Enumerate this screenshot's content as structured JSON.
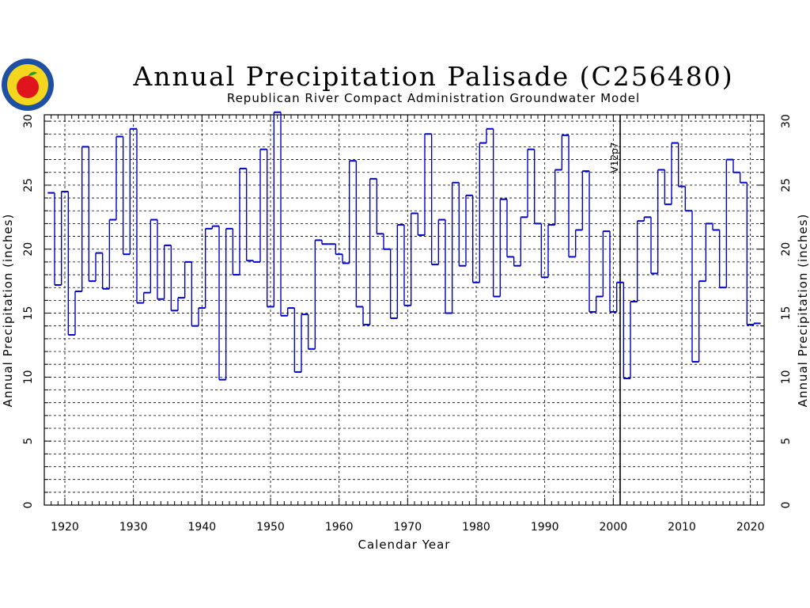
{
  "chart_data": {
    "type": "line",
    "title": "Annual Precipitation Palisade (C256480)",
    "subtitle": "Republican River Compact Administration Groundwater Model",
    "xlabel": "Calendar Year",
    "ylabel": "Annual Precipitation (inches)",
    "xlim": [
      1917,
      2022
    ],
    "ylim": [
      0,
      30.5
    ],
    "x_ticks": [
      1920,
      1930,
      1940,
      1950,
      1960,
      1970,
      1980,
      1990,
      2000,
      2010,
      2020
    ],
    "y_ticks": [
      0,
      5,
      10,
      15,
      20,
      25,
      30
    ],
    "grid": true,
    "marker": {
      "year": 2001,
      "label": "V12p7"
    },
    "line_color": "#0000cc",
    "x": [
      1918,
      1919,
      1920,
      1921,
      1922,
      1923,
      1924,
      1925,
      1926,
      1927,
      1928,
      1929,
      1930,
      1931,
      1932,
      1933,
      1934,
      1935,
      1936,
      1937,
      1938,
      1939,
      1940,
      1941,
      1942,
      1943,
      1944,
      1945,
      1946,
      1947,
      1948,
      1949,
      1950,
      1951,
      1952,
      1953,
      1954,
      1955,
      1956,
      1957,
      1958,
      1959,
      1960,
      1961,
      1962,
      1963,
      1964,
      1965,
      1966,
      1967,
      1968,
      1969,
      1970,
      1971,
      1972,
      1973,
      1974,
      1975,
      1976,
      1977,
      1978,
      1979,
      1980,
      1981,
      1982,
      1983,
      1984,
      1985,
      1986,
      1987,
      1988,
      1989,
      1990,
      1991,
      1992,
      1993,
      1994,
      1995,
      1996,
      1997,
      1998,
      1999,
      2000,
      2001,
      2002,
      2003,
      2004,
      2005,
      2006,
      2007,
      2008,
      2009,
      2010,
      2011,
      2012,
      2013,
      2014,
      2015,
      2016,
      2017,
      2018,
      2019,
      2020,
      2021
    ],
    "values": [
      24.4,
      17.2,
      24.5,
      13.3,
      16.7,
      28.0,
      17.5,
      19.7,
      16.9,
      22.3,
      28.8,
      19.6,
      29.4,
      15.8,
      16.6,
      22.3,
      16.1,
      20.3,
      15.2,
      16.2,
      19.0,
      14.0,
      15.4,
      21.6,
      21.8,
      9.8,
      21.6,
      18.0,
      26.3,
      19.1,
      19.0,
      27.8,
      15.5,
      30.7,
      14.8,
      15.4,
      10.4,
      14.9,
      12.2,
      20.7,
      20.4,
      20.4,
      19.6,
      18.9,
      26.9,
      15.5,
      14.1,
      25.5,
      21.2,
      20.0,
      14.6,
      21.9,
      15.6,
      22.8,
      21.1,
      29.0,
      18.8,
      22.3,
      15.0,
      25.2,
      18.7,
      24.2,
      17.4,
      28.3,
      29.4,
      16.3,
      23.9,
      19.4,
      18.7,
      22.5,
      27.8,
      22.0,
      17.8,
      21.9,
      26.2,
      28.9,
      19.4,
      21.5,
      26.1,
      15.1,
      16.3,
      21.4,
      15.1,
      17.4,
      9.9,
      15.9,
      22.2,
      22.5,
      18.1,
      26.2,
      23.5,
      28.3,
      24.9,
      23.0,
      11.2,
      17.5,
      22.0,
      21.5,
      17.0,
      27.0,
      26.0,
      25.2,
      14.1,
      14.2
    ]
  }
}
